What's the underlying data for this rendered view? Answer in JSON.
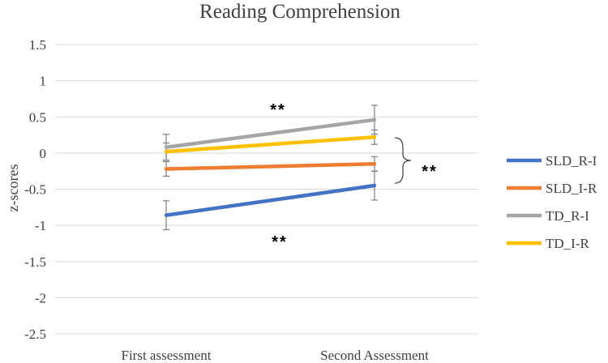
{
  "chart_data": {
    "type": "line",
    "title": "Reading Comprehension",
    "xlabel": "",
    "ylabel": "z-scores",
    "categories": [
      "First assessment",
      "Second Assessment"
    ],
    "ylim": [
      -2.5,
      1.5
    ],
    "yticks": [
      1.5,
      1,
      0.5,
      0,
      -0.5,
      -1,
      -1.5,
      -2,
      -2.5
    ],
    "ytick_labels": [
      "1.5",
      "1",
      "0.5",
      "0",
      "-0.5",
      "-1",
      "-1.5",
      "-2",
      "-2.5"
    ],
    "grid": true,
    "legend": "right",
    "series": [
      {
        "name": "SLD_R-I",
        "values": [
          -0.86,
          -0.45
        ],
        "error": [
          0.2,
          0.2
        ],
        "color": "#4472C4"
      },
      {
        "name": "SLD_I-R",
        "values": [
          -0.22,
          -0.15
        ],
        "error": [
          0.1,
          0.1
        ],
        "color": "#ED7D31"
      },
      {
        "name": "TD_R-I",
        "values": [
          0.08,
          0.46
        ],
        "error": [
          0.18,
          0.2
        ],
        "color": "#A5A5A5"
      },
      {
        "name": "TD_I-R",
        "values": [
          0.02,
          0.22
        ],
        "error": [
          0.12,
          0.1
        ],
        "color": "#FFC000"
      }
    ],
    "annotations": [
      {
        "text": "**",
        "near": "between TD_R-I lines, upper"
      },
      {
        "text": "**",
        "near": "right bracket"
      },
      {
        "text": "**",
        "near": "below SLD_R-I line"
      }
    ]
  }
}
